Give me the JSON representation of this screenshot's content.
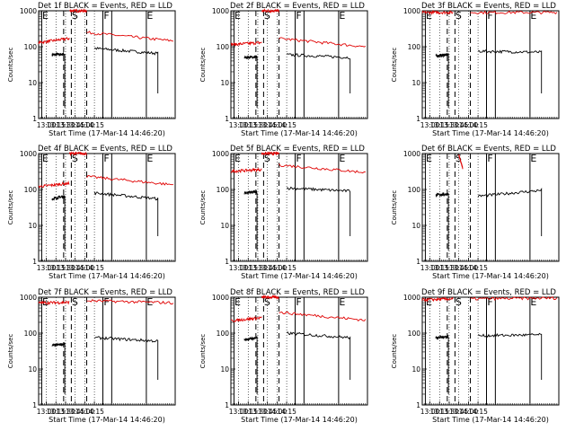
{
  "figure": {
    "layout": "3x3 grid of count-rate plots"
  },
  "colors": {
    "events": "#000000",
    "lld": "#e00000",
    "axes": "#000000",
    "grid": "#000000",
    "background": "#ffffff"
  },
  "chart_data": [
    {
      "type": "line",
      "title": "Det 1f BLACK = Events, RED = LLD",
      "ylabel": "Counts/sec",
      "xlabel": "Start Time (17-Mar-14 14:46:20)",
      "ylim": [
        1,
        1000
      ],
      "yscale": "log",
      "ytick_labels": [
        "1",
        "10",
        "100",
        "1000"
      ],
      "xlim": [
        12.8,
        16.35
      ],
      "xtick_labels": [
        "13:00",
        "13:15",
        "13:30",
        "13:45",
        "14:00",
        "14:15"
      ],
      "markers": [
        {
          "label": "E",
          "x": 12.88,
          "style": "solid"
        },
        {
          "label": "S",
          "x": 13.65,
          "style": "dashed"
        },
        {
          "label": "",
          "x": 13.45,
          "style": "dashed"
        },
        {
          "label": "",
          "x": 14.05,
          "style": "dashed"
        },
        {
          "label": "F",
          "x": 14.47,
          "style": "solid"
        },
        {
          "label": "",
          "x": 14.7,
          "style": "solid"
        },
        {
          "label": "E",
          "x": 15.6,
          "style": "solid"
        }
      ],
      "series": [
        {
          "name": "Events",
          "color": "black",
          "segments": [
            {
              "x0": 13.15,
              "x1": 13.48,
              "y0": 60,
              "y1": 62,
              "drop": 2
            },
            {
              "x0": 14.25,
              "x1": 15.9,
              "y0": 90,
              "y1": 65,
              "drop": 5
            }
          ]
        },
        {
          "name": "LLD",
          "color": "red",
          "segments": [
            {
              "x0": 12.8,
              "x1": 13.6,
              "y0": 130,
              "y1": 170
            },
            {
              "x0": 13.6,
              "x1": 14.05,
              "y0": 1000,
              "y1": 1000
            },
            {
              "x0": 14.05,
              "x1": 16.3,
              "y0": 250,
              "y1": 145
            }
          ]
        }
      ]
    },
    {
      "type": "line",
      "title": "Det 2f BLACK = Events, RED = LLD",
      "ylabel": "Counts/sec",
      "xlabel": "Start Time (17-Mar-14 14:46:20)",
      "ylim": [
        1,
        1000
      ],
      "yscale": "log",
      "ytick_labels": [
        "1",
        "10",
        "100",
        "1000"
      ],
      "xlim": [
        12.8,
        16.35
      ],
      "xtick_labels": [
        "13:00",
        "13:15",
        "13:30",
        "13:45",
        "14:00",
        "14:15"
      ],
      "markers": [
        {
          "label": "E",
          "x": 12.88,
          "style": "solid"
        },
        {
          "label": "S",
          "x": 13.65,
          "style": "dashed"
        },
        {
          "label": "",
          "x": 13.45,
          "style": "dashed"
        },
        {
          "label": "",
          "x": 14.05,
          "style": "dashed"
        },
        {
          "label": "F",
          "x": 14.47,
          "style": "solid"
        },
        {
          "label": "",
          "x": 14.7,
          "style": "solid"
        },
        {
          "label": "E",
          "x": 15.6,
          "style": "solid"
        }
      ],
      "series": [
        {
          "name": "Events",
          "color": "black",
          "segments": [
            {
              "x0": 13.15,
              "x1": 13.48,
              "y0": 50,
              "y1": 52,
              "drop": 2
            },
            {
              "x0": 14.25,
              "x1": 15.9,
              "y0": 60,
              "y1": 50,
              "drop": 5
            }
          ]
        },
        {
          "name": "LLD",
          "color": "red",
          "segments": [
            {
              "x0": 12.8,
              "x1": 13.6,
              "y0": 115,
              "y1": 130
            },
            {
              "x0": 13.6,
              "x1": 14.05,
              "y0": 1000,
              "y1": 1000
            },
            {
              "x0": 14.05,
              "x1": 16.3,
              "y0": 170,
              "y1": 100
            }
          ]
        }
      ]
    },
    {
      "type": "line",
      "title": "Det 3f BLACK = Events, RED = LLD",
      "ylabel": "Counts/sec",
      "xlabel": "Start Time (17-Mar-14 14:46:20)",
      "ylim": [
        1,
        1000
      ],
      "yscale": "log",
      "ytick_labels": [
        "1",
        "10",
        "100",
        "1000"
      ],
      "xlim": [
        12.8,
        16.35
      ],
      "xtick_labels": [
        "13:00",
        "13:15",
        "13:30",
        "13:45",
        "14:00",
        "14:15"
      ],
      "markers": [
        {
          "label": "E",
          "x": 12.88,
          "style": "solid"
        },
        {
          "label": "S",
          "x": 13.65,
          "style": "dashed"
        },
        {
          "label": "",
          "x": 13.45,
          "style": "dashed"
        },
        {
          "label": "",
          "x": 14.05,
          "style": "dashed"
        },
        {
          "label": "F",
          "x": 14.47,
          "style": "solid"
        },
        {
          "label": "",
          "x": 14.7,
          "style": "solid"
        },
        {
          "label": "E",
          "x": 15.6,
          "style": "solid"
        }
      ],
      "series": [
        {
          "name": "Events",
          "color": "black",
          "segments": [
            {
              "x0": 13.15,
              "x1": 13.48,
              "y0": 55,
              "y1": 60,
              "drop": 2
            },
            {
              "x0": 14.25,
              "x1": 15.9,
              "y0": 75,
              "y1": 70,
              "drop": 5
            }
          ]
        },
        {
          "name": "LLD",
          "color": "red",
          "segments": [
            {
              "x0": 12.8,
              "x1": 13.6,
              "y0": 900,
              "y1": 900
            },
            {
              "x0": 14.05,
              "x1": 16.3,
              "y0": 900,
              "y1": 900
            }
          ]
        }
      ]
    },
    {
      "type": "line",
      "title": "Det 4f BLACK = Events, RED = LLD",
      "ylabel": "Counts/sec",
      "xlabel": "Start Time (17-Mar-14 14:46:20)",
      "ylim": [
        1,
        1000
      ],
      "yscale": "log",
      "ytick_labels": [
        "1",
        "10",
        "100",
        "1000"
      ],
      "xlim": [
        12.8,
        16.35
      ],
      "xtick_labels": [
        "13:00",
        "13:15",
        "13:30",
        "13:45",
        "14:00",
        "14:15"
      ],
      "markers": [
        {
          "label": "E",
          "x": 12.88,
          "style": "solid"
        },
        {
          "label": "S",
          "x": 13.65,
          "style": "dashed"
        },
        {
          "label": "",
          "x": 13.45,
          "style": "dashed"
        },
        {
          "label": "",
          "x": 14.05,
          "style": "dashed"
        },
        {
          "label": "F",
          "x": 14.47,
          "style": "solid"
        },
        {
          "label": "",
          "x": 14.7,
          "style": "solid"
        },
        {
          "label": "E",
          "x": 15.6,
          "style": "solid"
        }
      ],
      "series": [
        {
          "name": "Events",
          "color": "black",
          "segments": [
            {
              "x0": 13.15,
              "x1": 13.48,
              "y0": 55,
              "y1": 65,
              "drop": 2
            },
            {
              "x0": 14.25,
              "x1": 15.9,
              "y0": 80,
              "y1": 55,
              "drop": 5
            }
          ]
        },
        {
          "name": "LLD",
          "color": "red",
          "segments": [
            {
              "x0": 12.8,
              "x1": 13.6,
              "y0": 120,
              "y1": 150
            },
            {
              "x0": 13.6,
              "x1": 14.05,
              "y0": 1000,
              "y1": 1000
            },
            {
              "x0": 14.05,
              "x1": 16.3,
              "y0": 230,
              "y1": 135
            }
          ]
        }
      ]
    },
    {
      "type": "line",
      "title": "Det 5f BLACK = Events, RED = LLD",
      "ylabel": "Counts/sec",
      "xlabel": "Start Time (17-Mar-14 14:46:20)",
      "ylim": [
        1,
        1000
      ],
      "yscale": "log",
      "ytick_labels": [
        "1",
        "10",
        "100",
        "1000"
      ],
      "xlim": [
        12.8,
        16.35
      ],
      "xtick_labels": [
        "13:00",
        "13:15",
        "13:30",
        "13:45",
        "14:00",
        "14:15"
      ],
      "markers": [
        {
          "label": "E",
          "x": 12.88,
          "style": "solid"
        },
        {
          "label": "S",
          "x": 13.65,
          "style": "dashed"
        },
        {
          "label": "",
          "x": 13.45,
          "style": "dashed"
        },
        {
          "label": "",
          "x": 14.05,
          "style": "dashed"
        },
        {
          "label": "F",
          "x": 14.47,
          "style": "solid"
        },
        {
          "label": "",
          "x": 14.7,
          "style": "solid"
        },
        {
          "label": "E",
          "x": 15.6,
          "style": "solid"
        }
      ],
      "series": [
        {
          "name": "Events",
          "color": "black",
          "segments": [
            {
              "x0": 13.15,
              "x1": 13.48,
              "y0": 80,
              "y1": 85,
              "drop": 2
            },
            {
              "x0": 14.25,
              "x1": 15.9,
              "y0": 110,
              "y1": 90,
              "drop": 5
            }
          ]
        },
        {
          "name": "LLD",
          "color": "red",
          "segments": [
            {
              "x0": 12.8,
              "x1": 13.6,
              "y0": 320,
              "y1": 360
            },
            {
              "x0": 13.6,
              "x1": 14.05,
              "y0": 1000,
              "y1": 1000
            },
            {
              "x0": 14.05,
              "x1": 16.3,
              "y0": 480,
              "y1": 300
            }
          ]
        }
      ]
    },
    {
      "type": "line",
      "title": "Det 6f BLACK = Events, RED = LLD",
      "ylabel": "Counts/sec",
      "xlabel": "Start Time (17-Mar-14 14:46:20)",
      "ylim": [
        1,
        1000
      ],
      "yscale": "log",
      "ytick_labels": [
        "1",
        "10",
        "100",
        "1000"
      ],
      "xlim": [
        12.8,
        16.35
      ],
      "xtick_labels": [
        "13:00",
        "13:15",
        "13:30",
        "13:45",
        "14:00",
        "14:15"
      ],
      "markers": [
        {
          "label": "E",
          "x": 12.88,
          "style": "solid"
        },
        {
          "label": "S",
          "x": 13.65,
          "style": "dashed"
        },
        {
          "label": "",
          "x": 13.45,
          "style": "dashed"
        },
        {
          "label": "",
          "x": 14.05,
          "style": "dashed"
        },
        {
          "label": "F",
          "x": 14.47,
          "style": "solid"
        },
        {
          "label": "",
          "x": 14.7,
          "style": "solid"
        },
        {
          "label": "E",
          "x": 15.6,
          "style": "solid"
        }
      ],
      "series": [
        {
          "name": "Events",
          "color": "black",
          "segments": [
            {
              "x0": 13.15,
              "x1": 13.48,
              "y0": 70,
              "y1": 75,
              "drop": 2
            },
            {
              "x0": 14.25,
              "x1": 15.9,
              "y0": 65,
              "y1": 95,
              "drop": 5
            }
          ]
        },
        {
          "name": "LLD",
          "color": "red",
          "segments": [
            {
              "x0": 13.75,
              "x1": 13.85,
              "y0": 900,
              "y1": 400
            }
          ]
        }
      ]
    },
    {
      "type": "line",
      "title": "Det 7f BLACK = Events, RED = LLD",
      "ylabel": "Counts/sec",
      "xlabel": "Start Time (17-Mar-14 14:46:20)",
      "ylim": [
        1,
        1000
      ],
      "yscale": "log",
      "ytick_labels": [
        "1",
        "10",
        "100",
        "1000"
      ],
      "xlim": [
        12.8,
        16.35
      ],
      "xtick_labels": [
        "13:00",
        "13:15",
        "13:30",
        "13:45",
        "14:00",
        "14:15"
      ],
      "markers": [
        {
          "label": "E",
          "x": 12.88,
          "style": "solid"
        },
        {
          "label": "S",
          "x": 13.65,
          "style": "dashed"
        },
        {
          "label": "",
          "x": 13.45,
          "style": "dashed"
        },
        {
          "label": "",
          "x": 14.05,
          "style": "dashed"
        },
        {
          "label": "F",
          "x": 14.47,
          "style": "solid"
        },
        {
          "label": "",
          "x": 14.7,
          "style": "solid"
        },
        {
          "label": "E",
          "x": 15.6,
          "style": "solid"
        }
      ],
      "series": [
        {
          "name": "Events",
          "color": "black",
          "segments": [
            {
              "x0": 13.15,
              "x1": 13.48,
              "y0": 45,
              "y1": 50,
              "drop": 2
            },
            {
              "x0": 14.25,
              "x1": 15.9,
              "y0": 75,
              "y1": 60,
              "drop": 5
            }
          ]
        },
        {
          "name": "LLD",
          "color": "red",
          "segments": [
            {
              "x0": 12.8,
              "x1": 13.6,
              "y0": 700,
              "y1": 720
            },
            {
              "x0": 14.05,
              "x1": 16.3,
              "y0": 800,
              "y1": 700
            }
          ]
        }
      ]
    },
    {
      "type": "line",
      "title": "Det 8f BLACK = Events, RED = LLD",
      "ylabel": "Counts/sec",
      "xlabel": "Start Time (17-Mar-14 14:46:20)",
      "ylim": [
        1,
        1000
      ],
      "yscale": "log",
      "ytick_labels": [
        "1",
        "10",
        "100",
        "1000"
      ],
      "xlim": [
        12.8,
        16.35
      ],
      "xtick_labels": [
        "13:00",
        "13:15",
        "13:30",
        "13:45",
        "14:00",
        "14:15"
      ],
      "markers": [
        {
          "label": "E",
          "x": 12.88,
          "style": "solid"
        },
        {
          "label": "S",
          "x": 13.65,
          "style": "dashed"
        },
        {
          "label": "",
          "x": 13.45,
          "style": "dashed"
        },
        {
          "label": "",
          "x": 14.05,
          "style": "dashed"
        },
        {
          "label": "F",
          "x": 14.47,
          "style": "solid"
        },
        {
          "label": "",
          "x": 14.7,
          "style": "solid"
        },
        {
          "label": "E",
          "x": 15.6,
          "style": "solid"
        }
      ],
      "series": [
        {
          "name": "Events",
          "color": "black",
          "segments": [
            {
              "x0": 13.15,
              "x1": 13.48,
              "y0": 65,
              "y1": 75,
              "drop": 2
            },
            {
              "x0": 14.25,
              "x1": 15.9,
              "y0": 100,
              "y1": 75,
              "drop": 5
            }
          ]
        },
        {
          "name": "LLD",
          "color": "red",
          "segments": [
            {
              "x0": 12.8,
              "x1": 13.6,
              "y0": 220,
              "y1": 270
            },
            {
              "x0": 13.6,
              "x1": 14.05,
              "y0": 1000,
              "y1": 1000
            },
            {
              "x0": 14.05,
              "x1": 16.3,
              "y0": 380,
              "y1": 230
            }
          ]
        }
      ]
    },
    {
      "type": "line",
      "title": "Det 9f BLACK = Events, RED = LLD",
      "ylabel": "Counts/sec",
      "xlabel": "Start Time (17-Mar-14 14:46:20)",
      "ylim": [
        1,
        1000
      ],
      "yscale": "log",
      "ytick_labels": [
        "1",
        "10",
        "100",
        "1000"
      ],
      "xlim": [
        12.8,
        16.35
      ],
      "xtick_labels": [
        "13:00",
        "13:15",
        "13:30",
        "13:45",
        "14:00",
        "14:15"
      ],
      "markers": [
        {
          "label": "E",
          "x": 12.88,
          "style": "solid"
        },
        {
          "label": "S",
          "x": 13.65,
          "style": "dashed"
        },
        {
          "label": "",
          "x": 13.45,
          "style": "dashed"
        },
        {
          "label": "",
          "x": 14.05,
          "style": "dashed"
        },
        {
          "label": "F",
          "x": 14.47,
          "style": "solid"
        },
        {
          "label": "",
          "x": 14.7,
          "style": "solid"
        },
        {
          "label": "E",
          "x": 15.6,
          "style": "solid"
        }
      ],
      "series": [
        {
          "name": "Events",
          "color": "black",
          "segments": [
            {
              "x0": 13.15,
              "x1": 13.48,
              "y0": 75,
              "y1": 80,
              "drop": 2
            },
            {
              "x0": 14.25,
              "x1": 15.9,
              "y0": 85,
              "y1": 90,
              "drop": 5
            }
          ]
        },
        {
          "name": "LLD",
          "color": "red",
          "segments": [
            {
              "x0": 12.8,
              "x1": 13.6,
              "y0": 850,
              "y1": 900
            },
            {
              "x0": 14.05,
              "x1": 16.3,
              "y0": 900,
              "y1": 950
            }
          ]
        }
      ]
    }
  ]
}
